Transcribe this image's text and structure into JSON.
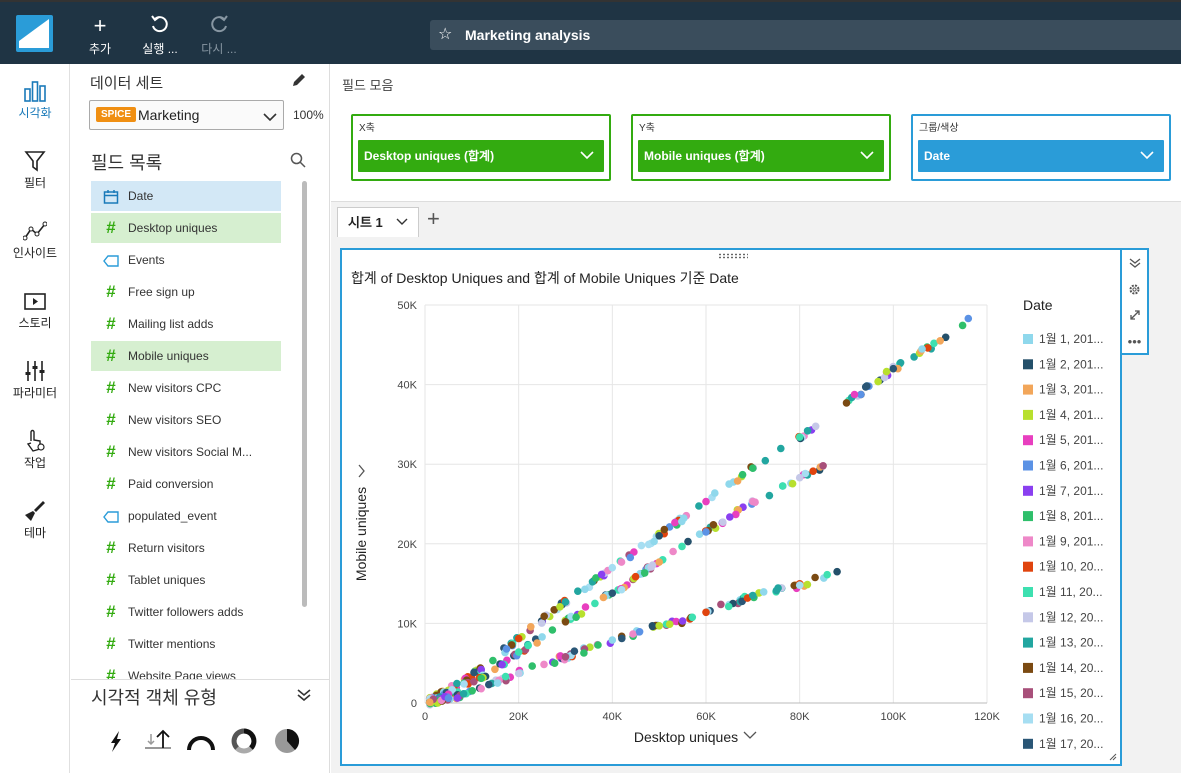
{
  "toolbar": {
    "add_label": "추가",
    "run_label": "실행 ...",
    "redo_label": "다시 ...",
    "analysis_title": "Marketing analysis"
  },
  "nav": [
    {
      "label": "시각화",
      "icon": "bar-chart-icon",
      "active": true
    },
    {
      "label": "필터",
      "icon": "filter-icon",
      "active": false
    },
    {
      "label": "인사이트",
      "icon": "insights-icon",
      "active": false
    },
    {
      "label": "스토리",
      "icon": "story-icon",
      "active": false
    },
    {
      "label": "파라미터",
      "icon": "sliders-icon",
      "active": false
    },
    {
      "label": "작업",
      "icon": "action-hand-icon",
      "active": false
    },
    {
      "label": "테마",
      "icon": "brush-icon",
      "active": false
    }
  ],
  "dataset": {
    "title": "데이터 세트",
    "badge": "SPICE",
    "name": "Marketing",
    "percent": "100%"
  },
  "field_list": {
    "title": "필드 목록",
    "fields": [
      {
        "name": "Date",
        "type": "date",
        "state": "blue"
      },
      {
        "name": "Desktop uniques",
        "type": "measure",
        "state": "green"
      },
      {
        "name": "Events",
        "type": "dimension",
        "state": ""
      },
      {
        "name": "Free sign up",
        "type": "measure",
        "state": ""
      },
      {
        "name": "Mailing list adds",
        "type": "measure",
        "state": ""
      },
      {
        "name": "Mobile uniques",
        "type": "measure",
        "state": "green"
      },
      {
        "name": "New visitors CPC",
        "type": "measure",
        "state": ""
      },
      {
        "name": "New visitors SEO",
        "type": "measure",
        "state": ""
      },
      {
        "name": "New visitors Social M...",
        "type": "measure",
        "state": ""
      },
      {
        "name": "Paid conversion",
        "type": "measure",
        "state": ""
      },
      {
        "name": "populated_event",
        "type": "dimension",
        "state": ""
      },
      {
        "name": "Return visitors",
        "type": "measure",
        "state": ""
      },
      {
        "name": "Tablet uniques",
        "type": "measure",
        "state": ""
      },
      {
        "name": "Twitter followers adds",
        "type": "measure",
        "state": ""
      },
      {
        "name": "Twitter mentions",
        "type": "measure",
        "state": ""
      },
      {
        "name": "Website Page views",
        "type": "measure",
        "state": ""
      }
    ]
  },
  "visual_types": {
    "title": "시각적 객체 유형"
  },
  "field_wells": {
    "title": "필드 모음",
    "x": {
      "label": "X축",
      "value": "Desktop uniques (합계)"
    },
    "y": {
      "label": "Y축",
      "value": "Mobile uniques (합계)"
    },
    "group": {
      "label": "그룹/색상",
      "value": "Date"
    }
  },
  "sheet": {
    "tab_label": "시트 1"
  },
  "visual": {
    "title": "합계 of Desktop Uniques and 합계 of Mobile Uniques 기준 Date"
  },
  "chart_data": {
    "type": "scatter",
    "title": "합계 of Desktop Uniques and 합계 of Mobile Uniques 기준 Date",
    "xlabel": "Desktop uniques",
    "ylabel": "Mobile uniques",
    "xlim": [
      0,
      120000
    ],
    "ylim": [
      0,
      50000
    ],
    "x_ticks": [
      "0",
      "20K",
      "40K",
      "60K",
      "80K",
      "100K",
      "120K"
    ],
    "y_ticks": [
      "0",
      "10K",
      "20K",
      "30K",
      "40K",
      "50K"
    ],
    "grid": true,
    "legend_title": "Date",
    "legend_position": "right",
    "legend": [
      {
        "label": "1월 1, 201...",
        "color": "#8fd8ec"
      },
      {
        "label": "1월 2, 201...",
        "color": "#24506a"
      },
      {
        "label": "1월 3, 201...",
        "color": "#f2a65a"
      },
      {
        "label": "1월 4, 201...",
        "color": "#b8e02e"
      },
      {
        "label": "1월 5, 201...",
        "color": "#e83fbf"
      },
      {
        "label": "1월 6, 201...",
        "color": "#5b92e5"
      },
      {
        "label": "1월 7, 201...",
        "color": "#8a3ff0"
      },
      {
        "label": "1월 8, 201...",
        "color": "#2fbf6b"
      },
      {
        "label": "1월 9, 201...",
        "color": "#ee88c8"
      },
      {
        "label": "1월 10, 20...",
        "color": "#e0440e"
      },
      {
        "label": "1월 11, 20...",
        "color": "#3de0b0"
      },
      {
        "label": "1월 12, 20...",
        "color": "#c5c8e8"
      },
      {
        "label": "1월 13, 20...",
        "color": "#22a6a0"
      },
      {
        "label": "1월 14, 20...",
        "color": "#7b4a12"
      },
      {
        "label": "1월 15, 20...",
        "color": "#a8507a"
      },
      {
        "label": "1월 16, 20...",
        "color": "#a6def2"
      },
      {
        "label": "1월 17, 20...",
        "color": "#2a5676"
      }
    ],
    "series_trends": [
      {
        "name": "upper band",
        "x": [
          1000,
          5000,
          12000,
          20000,
          30000,
          40000,
          50000,
          60000,
          70000,
          80000,
          90000,
          100000,
          110000,
          116000
        ],
        "y": [
          300,
          1600,
          4200,
          8100,
          12700,
          17000,
          21000,
          25300,
          29500,
          33400,
          37700,
          42000,
          45500,
          48300
        ]
      },
      {
        "name": "middle band",
        "x": [
          1000,
          5000,
          12000,
          20000,
          30000,
          40000,
          50000,
          60000,
          70000,
          80000,
          85000
        ],
        "y": [
          200,
          1100,
          3100,
          6400,
          10200,
          13800,
          17700,
          21500,
          25300,
          28300,
          29800
        ]
      },
      {
        "name": "lower band",
        "x": [
          1000,
          5000,
          12000,
          20000,
          30000,
          40000,
          50000,
          55000,
          60000,
          70000,
          80000,
          88000
        ],
        "y": [
          100,
          600,
          1800,
          3700,
          5800,
          7900,
          9700,
          10300,
          11400,
          13500,
          14800,
          16500
        ]
      }
    ]
  },
  "colors": {
    "topbar": "#1f3444",
    "accent_blue": "#2a9cd8",
    "accent_green": "#33ab10"
  }
}
